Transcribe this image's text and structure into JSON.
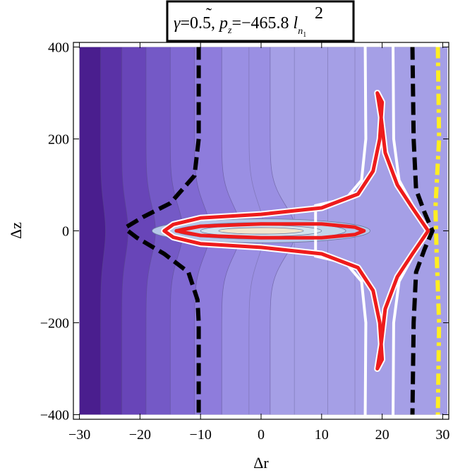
{
  "chart_data": {
    "type": "contour",
    "title": "γ=0.5, p̃ z=−465.8 l n₁ ²",
    "title_parts": {
      "gamma": "γ",
      "gamma_value": "=0.5, ",
      "p_symbol": "p",
      "p_tilde": "˜",
      "p_sub": "z",
      "p_value": "=−465.8 ",
      "l_symbol": "l",
      "l_sub": "n",
      "l_subsub": "1",
      "l_sup": "2"
    },
    "xlabel": "Δr",
    "ylabel": "Δz",
    "xlim": [
      -31,
      31
    ],
    "ylim": [
      -410,
      410
    ],
    "plot_region": {
      "x": [
        -30,
        30
      ],
      "y": [
        -400,
        400
      ]
    },
    "x_ticks": [
      {
        "value": -30,
        "label": "−30"
      },
      {
        "value": -20,
        "label": "−20"
      },
      {
        "value": -10,
        "label": "−10"
      },
      {
        "value": 0,
        "label": "0"
      },
      {
        "value": 10,
        "label": "10"
      },
      {
        "value": 20,
        "label": "20"
      },
      {
        "value": 30,
        "label": "30"
      }
    ],
    "y_ticks": [
      {
        "value": -400,
        "label": "−400"
      },
      {
        "value": -200,
        "label": "−200"
      },
      {
        "value": 0,
        "label": "0"
      },
      {
        "value": 200,
        "label": "200"
      },
      {
        "value": 400,
        "label": "400"
      }
    ],
    "contour_bands": [
      {
        "level": 1,
        "x_boundary": -26.5,
        "color": "#4a1e8e"
      },
      {
        "level": 2,
        "x_boundary": -23.0,
        "color": "#5a32a6"
      },
      {
        "level": 3,
        "x_boundary": -19.0,
        "color": "#6845b8"
      },
      {
        "level": 4,
        "x_boundary": -15.0,
        "color": "#7459c6"
      },
      {
        "level": 5,
        "x_boundary": -11.0,
        "color": "#8069d2"
      },
      {
        "level": 6,
        "x_boundary": -6.5,
        "color": "#8e7cdc"
      },
      {
        "level": 7,
        "x_boundary": 1.5,
        "color": "#9a8fe3"
      },
      {
        "level": 8,
        "x_boundary": 31.0,
        "color": "#a59fe6"
      }
    ],
    "region_colors": {
      "outer_light": "#adb5e6",
      "ellipse_outer": "#b6c7e9",
      "ellipse_mid": "#c2d6ec",
      "ellipse_inner": "#d2e3ee",
      "core": "#f2e6cc"
    },
    "center_ellipses": [
      {
        "rx": 18.0,
        "rz": 26,
        "fill": "#b6c7e9"
      },
      {
        "rx": 14.0,
        "rz": 18,
        "fill": "#c2d6ec"
      },
      {
        "rx": 10.0,
        "rz": 12,
        "fill": "#d2e3ee"
      },
      {
        "rx": 7.0,
        "rz": 7,
        "fill": "#f2e6cc"
      }
    ],
    "curves": {
      "red_outer": {
        "color": "#ee1c1c",
        "points": [
          [
            19.2,
            300
          ],
          [
            20.0,
            280
          ],
          [
            19.6,
            200
          ],
          [
            18.5,
            130
          ],
          [
            16.0,
            80
          ],
          [
            10.0,
            50
          ],
          [
            0,
            36
          ],
          [
            -10.0,
            28
          ],
          [
            -14.5,
            14
          ],
          [
            -16.0,
            0
          ],
          [
            -14.5,
            -14
          ],
          [
            -10.0,
            -28
          ],
          [
            0,
            -36
          ],
          [
            10.0,
            -50
          ],
          [
            16.0,
            -80
          ],
          [
            18.5,
            -130
          ],
          [
            19.6,
            -200
          ],
          [
            20.0,
            -280
          ],
          [
            19.2,
            -300
          ],
          [
            19.8,
            -250
          ],
          [
            20.5,
            -170
          ],
          [
            22.5,
            -100
          ],
          [
            25.0,
            -50
          ],
          [
            27.6,
            0
          ],
          [
            25.0,
            50
          ],
          [
            22.5,
            100
          ],
          [
            20.5,
            170
          ],
          [
            19.8,
            250
          ],
          [
            19.2,
            300
          ]
        ]
      },
      "red_inner": {
        "color": "#ee1c1c",
        "points": [
          [
            -14.0,
            0
          ],
          [
            -10.0,
            10
          ],
          [
            0,
            15
          ],
          [
            10.0,
            15
          ],
          [
            15.5,
            8
          ],
          [
            17.0,
            0
          ],
          [
            15.5,
            -8
          ],
          [
            10.0,
            -15
          ],
          [
            0,
            -15
          ],
          [
            -10.0,
            -10
          ],
          [
            -14.0,
            0
          ]
        ]
      },
      "white_fill_right": {
        "color": "#ffffff",
        "x_range": [
          18.0,
          21.5
        ]
      },
      "black_dashed_left": {
        "color": "#000000",
        "points": [
          [
            -10.3,
            400
          ],
          [
            -10.3,
            200
          ],
          [
            -11.0,
            120
          ],
          [
            -15.0,
            60
          ],
          [
            -19.5,
            30
          ],
          [
            -22.3,
            8
          ],
          [
            -22.0,
            0
          ],
          [
            -20.5,
            -15
          ],
          [
            -16.0,
            -50
          ],
          [
            -12.0,
            -90
          ],
          [
            -10.5,
            -150
          ],
          [
            -10.3,
            -200
          ],
          [
            -10.3,
            -400
          ]
        ]
      },
      "black_dashed_right": {
        "color": "#000000",
        "points": [
          [
            25.0,
            400
          ],
          [
            25.2,
            200
          ],
          [
            25.6,
            90
          ],
          [
            27.0,
            40
          ],
          [
            28.3,
            0
          ],
          [
            27.0,
            -40
          ],
          [
            25.6,
            -90
          ],
          [
            25.2,
            -200
          ],
          [
            25.0,
            -400
          ]
        ]
      },
      "yellow_dashdot_right": {
        "color": "#ffee22",
        "points": [
          [
            29.2,
            400
          ],
          [
            29.4,
            200
          ],
          [
            29.0,
            100
          ],
          [
            28.8,
            50
          ],
          [
            29.0,
            -50
          ],
          [
            29.4,
            -200
          ],
          [
            29.2,
            -400
          ]
        ]
      }
    }
  }
}
